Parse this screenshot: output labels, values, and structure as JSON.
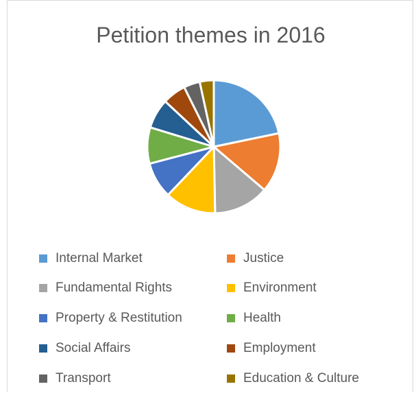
{
  "chart_data": {
    "type": "pie",
    "title": "Petition themes in 2016",
    "legend_position": "bottom",
    "categories": [
      "Internal Market",
      "Justice",
      "Fundamental Rights",
      "Environment",
      "Property & Restitution",
      "Health",
      "Social Affairs",
      "Employment",
      "Transport",
      "Education & Culture"
    ],
    "values": [
      21,
      14,
      13,
      12,
      8.5,
      8.5,
      7,
      5.5,
      3.8,
      3.3
    ],
    "colors": [
      "#5b9bd5",
      "#ed7d31",
      "#a5a5a5",
      "#ffc000",
      "#4472c4",
      "#70ad47",
      "#255e91",
      "#9e480e",
      "#636363",
      "#997300"
    ],
    "slice_border_color": "#ffffff"
  }
}
